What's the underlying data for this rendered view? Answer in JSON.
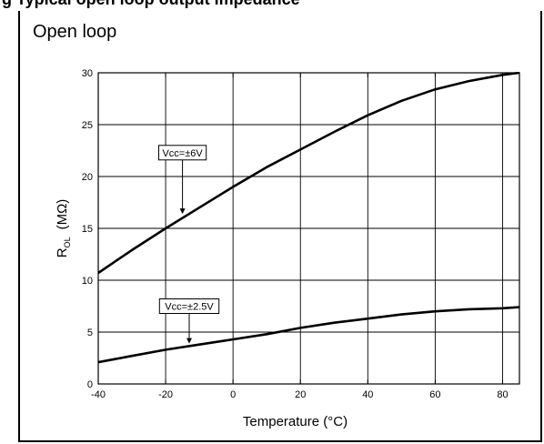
{
  "header": {
    "partial_title": "g Typical open loop output impedance"
  },
  "chart_data": {
    "type": "line",
    "title": "Open loop",
    "xlabel": "Temperature (°C)",
    "ylabel": "R",
    "ylabel_subscript": "OL",
    "ylabel_unit": "(MΩ)",
    "xlim": [
      -40,
      85
    ],
    "ylim": [
      0,
      30
    ],
    "xticks": [
      -40,
      -20,
      0,
      20,
      40,
      60,
      80
    ],
    "yticks": [
      0,
      5,
      10,
      15,
      20,
      25,
      30
    ],
    "grid": true,
    "series": [
      {
        "name": "Vcc=±6V",
        "x": [
          -40,
          -30,
          -20,
          -10,
          0,
          10,
          20,
          30,
          40,
          50,
          60,
          70,
          80,
          85
        ],
        "y": [
          10.7,
          12.9,
          15.0,
          17.0,
          19.0,
          20.9,
          22.6,
          24.3,
          25.9,
          27.3,
          28.4,
          29.2,
          29.8,
          30.0
        ]
      },
      {
        "name": "Vcc=±2.5V",
        "x": [
          -40,
          -30,
          -20,
          -10,
          0,
          10,
          20,
          30,
          40,
          50,
          60,
          70,
          80,
          85
        ],
        "y": [
          2.1,
          2.7,
          3.3,
          3.8,
          4.3,
          4.8,
          5.4,
          5.9,
          6.3,
          6.7,
          7.0,
          7.2,
          7.3,
          7.4
        ]
      }
    ],
    "annotations": [
      {
        "text": "Vcc=±6V",
        "x": -15,
        "y": 16.3,
        "box_y": 22.3
      },
      {
        "text": "Vcc=±2.5V",
        "x": -13,
        "y": 3.8,
        "box_y": 7.5
      }
    ]
  }
}
